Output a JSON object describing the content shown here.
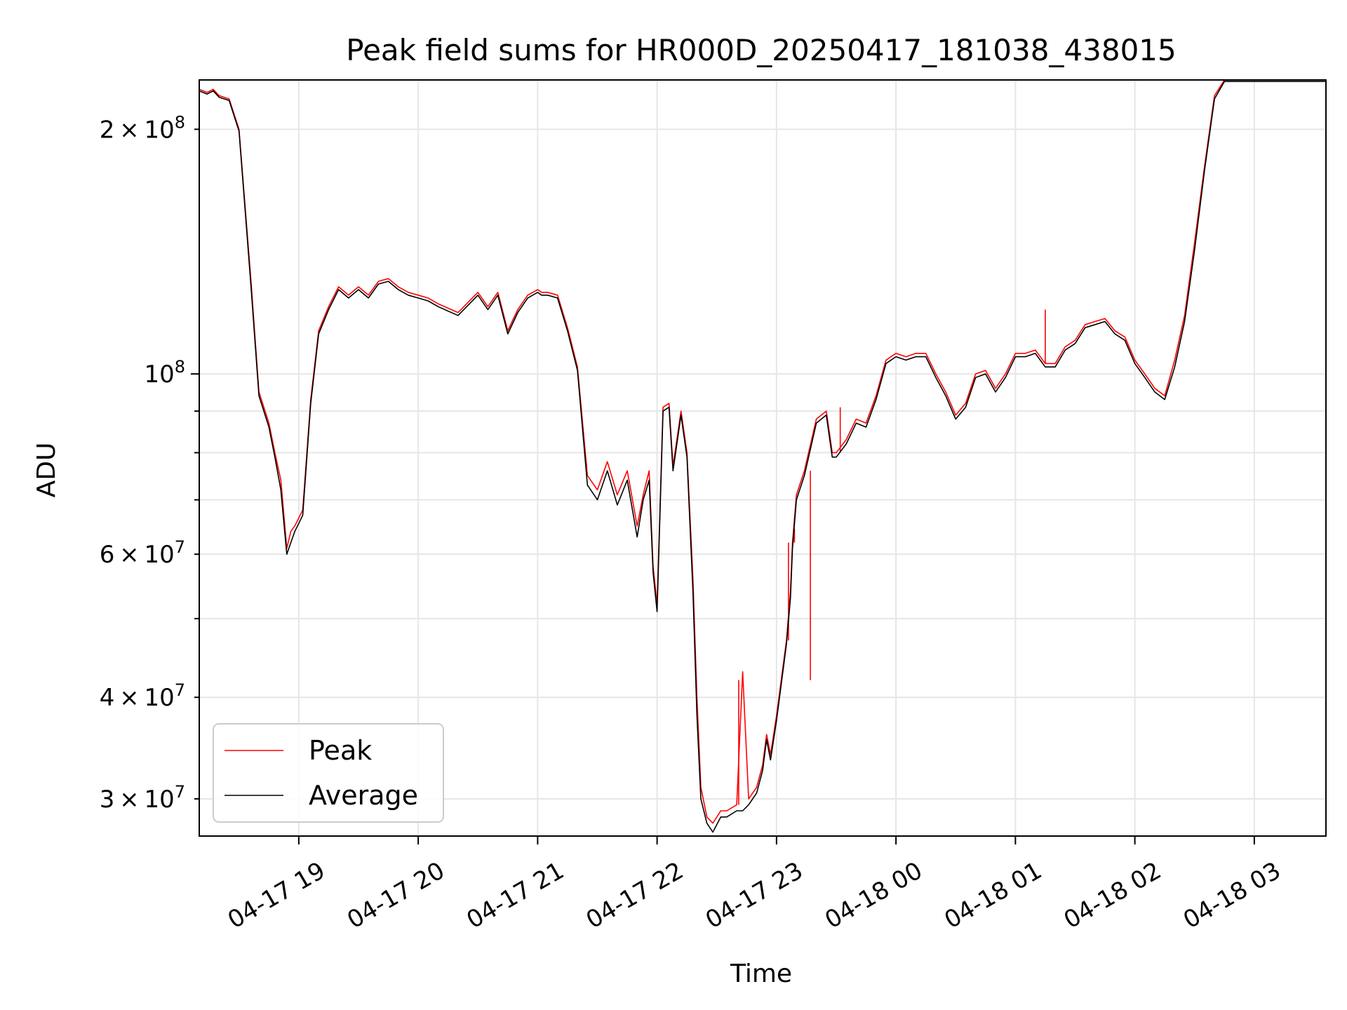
{
  "chart_data": {
    "type": "line",
    "title": "Peak field sums for HR000D_20250417_181038_438015",
    "xlabel": "Time",
    "ylabel": "ADU",
    "yscale": "log",
    "ylim": [
      27000000,
      230000000
    ],
    "xlim": [
      "04-17 18:10",
      "04-18 03:36"
    ],
    "grid": true,
    "legend_position": "lower-left",
    "x_ticks": [
      "04-17 19",
      "04-17 20",
      "04-17 21",
      "04-17 22",
      "04-17 23",
      "04-18 00",
      "04-18 01",
      "04-18 02",
      "04-18 03"
    ],
    "y_ticks_major": [
      {
        "value": 100000000,
        "label": "10^8",
        "base": "10",
        "exp": "8"
      }
    ],
    "y_ticks_minor": [
      {
        "value": 30000000,
        "label": "3×10^7",
        "mant": "3",
        "base": "10",
        "exp": "7"
      },
      {
        "value": 40000000,
        "label": "4×10^7",
        "mant": "4",
        "base": "10",
        "exp": "7"
      },
      {
        "value": 60000000,
        "label": "6×10^7",
        "mant": "6",
        "base": "10",
        "exp": "7"
      },
      {
        "value": 200000000,
        "label": "2×10^8",
        "mant": "2",
        "base": "10",
        "exp": "8"
      }
    ],
    "y_ticks_unlabeled": [
      50000000,
      70000000,
      80000000,
      90000000
    ],
    "series": [
      {
        "name": "Peak",
        "color": "#ff0000",
        "x": [
          "04-17 18:10",
          "04-17 18:14",
          "04-17 18:17",
          "04-17 18:20",
          "04-17 18:25",
          "04-17 18:30",
          "04-17 18:36",
          "04-17 18:40",
          "04-17 18:45",
          "04-17 18:48",
          "04-17 18:51",
          "04-17 18:54",
          "04-17 18:56",
          "04-17 18:58",
          "04-17 19:02",
          "04-17 19:06",
          "04-17 19:10",
          "04-17 19:15",
          "04-17 19:20",
          "04-17 19:25",
          "04-17 19:30",
          "04-17 19:35",
          "04-17 19:40",
          "04-17 19:45",
          "04-17 19:50",
          "04-17 19:55",
          "04-17 20:00",
          "04-17 20:05",
          "04-17 20:10",
          "04-17 20:20",
          "04-17 20:30",
          "04-17 20:35",
          "04-17 20:40",
          "04-17 20:45",
          "04-17 20:50",
          "04-17 20:55",
          "04-17 21:00",
          "04-17 21:02",
          "04-17 21:05",
          "04-17 21:10",
          "04-17 21:15",
          "04-17 21:20",
          "04-17 21:25",
          "04-17 21:30",
          "04-17 21:35",
          "04-17 21:40",
          "04-17 21:45",
          "04-17 21:50",
          "04-17 21:53",
          "04-17 21:56",
          "04-17 21:58",
          "04-17 22:00",
          "04-17 22:03",
          "04-17 22:06",
          "04-17 22:08",
          "04-17 22:12",
          "04-17 22:15",
          "04-17 22:18",
          "04-17 22:20",
          "04-17 22:22",
          "04-17 22:25",
          "04-17 22:28",
          "04-17 22:32",
          "04-17 22:35",
          "04-17 22:40",
          "04-17 22:43",
          "04-17 22:46",
          "04-17 22:50",
          "04-17 22:53",
          "04-17 22:55",
          "04-17 22:57",
          "04-17 23:00",
          "04-17 23:05",
          "04-17 23:07",
          "04-17 23:08",
          "04-17 23:10",
          "04-17 23:14",
          "04-17 23:20",
          "04-17 23:25",
          "04-17 23:28",
          "04-17 23:30",
          "04-17 23:35",
          "04-17 23:40",
          "04-17 23:45",
          "04-17 23:50",
          "04-17 23:55",
          "04-18 00:00",
          "04-18 00:05",
          "04-18 00:10",
          "04-18 00:15",
          "04-18 00:20",
          "04-18 00:25",
          "04-18 00:30",
          "04-18 00:35",
          "04-18 00:40",
          "04-18 00:45",
          "04-18 00:50",
          "04-18 00:55",
          "04-18 01:00",
          "04-18 01:05",
          "04-18 01:10",
          "04-18 01:15",
          "04-18 01:20",
          "04-18 01:25",
          "04-18 01:30",
          "04-18 01:35",
          "04-18 01:40",
          "04-18 01:45",
          "04-18 01:50",
          "04-18 01:55",
          "04-18 02:00",
          "04-18 02:05",
          "04-18 02:10",
          "04-18 02:15",
          "04-18 02:20",
          "04-18 02:25",
          "04-18 02:30",
          "04-18 02:35",
          "04-18 02:40",
          "04-18 02:45",
          "04-18 02:50",
          "04-18 02:55",
          "04-18 03:00",
          "04-18 03:05",
          "04-18 03:10",
          "04-18 03:15",
          "04-18 03:20",
          "04-18 03:25",
          "04-18 03:30",
          "04-18 03:36"
        ],
        "values": [
          224000000,
          222000000,
          224000000,
          220000000,
          218000000,
          200000000,
          130000000,
          95000000,
          87000000,
          80000000,
          74000000,
          61000000,
          64000000,
          65000000,
          68000000,
          93000000,
          113000000,
          121000000,
          128000000,
          125000000,
          128000000,
          125000000,
          130000000,
          131000000,
          128000000,
          126000000,
          125000000,
          124000000,
          122000000,
          119000000,
          126000000,
          121000000,
          126000000,
          113000000,
          120000000,
          125000000,
          127000000,
          126000000,
          126000000,
          125000000,
          114000000,
          102000000,
          75000000,
          72000000,
          78000000,
          71000000,
          76000000,
          65000000,
          71000000,
          76000000,
          58000000,
          52000000,
          91000000,
          92000000,
          77000000,
          90000000,
          80000000,
          56000000,
          40000000,
          31000000,
          28500000,
          28000000,
          29000000,
          29000000,
          29500000,
          43000000,
          30000000,
          31000000,
          33000000,
          36000000,
          34000000,
          38000000,
          47000000,
          54000000,
          62000000,
          71000000,
          76000000,
          88000000,
          90000000,
          80000000,
          80000000,
          83000000,
          88000000,
          87000000,
          94000000,
          104000000,
          106000000,
          105000000,
          106000000,
          106000000,
          100000000,
          95000000,
          89000000,
          92000000,
          100000000,
          101000000,
          96000000,
          100000000,
          106000000,
          106000000,
          107000000,
          103000000,
          103000000,
          108000000,
          110000000,
          115000000,
          116000000,
          117000000,
          113000000,
          111000000,
          104000000,
          100000000,
          96000000,
          94000000,
          104000000,
          118000000,
          145000000,
          180000000,
          220000000,
          230000000,
          230000000,
          230000000,
          230000000,
          230000000,
          230000000,
          230000000,
          230000000,
          230000000,
          230000000,
          230000000
        ],
        "spikes": [
          {
            "x": "04-17 23:06",
            "y": 62000000
          },
          {
            "x": "04-17 23:09",
            "y": 64500000
          },
          {
            "x": "04-17 23:17",
            "y": 42000000
          },
          {
            "x": "04-17 23:32",
            "y": 91000000
          },
          {
            "x": "04-18 01:15",
            "y": 120000000
          },
          {
            "x": "04-17 22:41",
            "y": 42000000
          }
        ]
      },
      {
        "name": "Average",
        "color": "#000000",
        "x": [
          "04-17 18:10",
          "04-17 18:14",
          "04-17 18:17",
          "04-17 18:20",
          "04-17 18:25",
          "04-17 18:30",
          "04-17 18:36",
          "04-17 18:40",
          "04-17 18:45",
          "04-17 18:48",
          "04-17 18:51",
          "04-17 18:54",
          "04-17 18:56",
          "04-17 18:58",
          "04-17 19:02",
          "04-17 19:06",
          "04-17 19:10",
          "04-17 19:15",
          "04-17 19:20",
          "04-17 19:25",
          "04-17 19:30",
          "04-17 19:35",
          "04-17 19:40",
          "04-17 19:45",
          "04-17 19:50",
          "04-17 19:55",
          "04-17 20:00",
          "04-17 20:05",
          "04-17 20:10",
          "04-17 20:20",
          "04-17 20:30",
          "04-17 20:35",
          "04-17 20:40",
          "04-17 20:45",
          "04-17 20:50",
          "04-17 20:55",
          "04-17 21:00",
          "04-17 21:02",
          "04-17 21:05",
          "04-17 21:10",
          "04-17 21:15",
          "04-17 21:20",
          "04-17 21:25",
          "04-17 21:30",
          "04-17 21:35",
          "04-17 21:40",
          "04-17 21:45",
          "04-17 21:50",
          "04-17 21:53",
          "04-17 21:56",
          "04-17 21:58",
          "04-17 22:00",
          "04-17 22:03",
          "04-17 22:06",
          "04-17 22:08",
          "04-17 22:12",
          "04-17 22:15",
          "04-17 22:18",
          "04-17 22:20",
          "04-17 22:22",
          "04-17 22:25",
          "04-17 22:28",
          "04-17 22:32",
          "04-17 22:35",
          "04-17 22:40",
          "04-17 22:43",
          "04-17 22:46",
          "04-17 22:50",
          "04-17 22:53",
          "04-17 22:55",
          "04-17 22:57",
          "04-17 23:00",
          "04-17 23:05",
          "04-17 23:07",
          "04-17 23:08",
          "04-17 23:10",
          "04-17 23:14",
          "04-17 23:20",
          "04-17 23:25",
          "04-17 23:28",
          "04-17 23:30",
          "04-17 23:35",
          "04-17 23:40",
          "04-17 23:45",
          "04-17 23:50",
          "04-17 23:55",
          "04-18 00:00",
          "04-18 00:05",
          "04-18 00:10",
          "04-18 00:15",
          "04-18 00:20",
          "04-18 00:25",
          "04-18 00:30",
          "04-18 00:35",
          "04-18 00:40",
          "04-18 00:45",
          "04-18 00:50",
          "04-18 00:55",
          "04-18 01:00",
          "04-18 01:05",
          "04-18 01:10",
          "04-18 01:15",
          "04-18 01:20",
          "04-18 01:25",
          "04-18 01:30",
          "04-18 01:35",
          "04-18 01:40",
          "04-18 01:45",
          "04-18 01:50",
          "04-18 01:55",
          "04-18 02:00",
          "04-18 02:05",
          "04-18 02:10",
          "04-18 02:15",
          "04-18 02:20",
          "04-18 02:25",
          "04-18 02:30",
          "04-18 02:35",
          "04-18 02:40",
          "04-18 02:45",
          "04-18 02:50",
          "04-18 02:55",
          "04-18 03:00",
          "04-18 03:05",
          "04-18 03:10",
          "04-18 03:15",
          "04-18 03:20",
          "04-18 03:25",
          "04-18 03:30",
          "04-18 03:36"
        ],
        "values": [
          223000000,
          221000000,
          223000000,
          219000000,
          217000000,
          199000000,
          128000000,
          94000000,
          86000000,
          79000000,
          72000000,
          60000000,
          62000000,
          64000000,
          67000000,
          92000000,
          112000000,
          120000000,
          127000000,
          124000000,
          127000000,
          124000000,
          129000000,
          130000000,
          127000000,
          125000000,
          124000000,
          123000000,
          121000000,
          118000000,
          125000000,
          120000000,
          125000000,
          112000000,
          119000000,
          124000000,
          126000000,
          125000000,
          125000000,
          124000000,
          113000000,
          101000000,
          73000000,
          70000000,
          76000000,
          69000000,
          74000000,
          63000000,
          70000000,
          74000000,
          57000000,
          51000000,
          90000000,
          91000000,
          76000000,
          89000000,
          79000000,
          54000000,
          38000000,
          30000000,
          28000000,
          27300000,
          28500000,
          28500000,
          29000000,
          29000000,
          29500000,
          30500000,
          32500000,
          35500000,
          33500000,
          37500000,
          46500000,
          53000000,
          61000000,
          70000000,
          75000000,
          87000000,
          89000000,
          79000000,
          79000000,
          82000000,
          87000000,
          86000000,
          93000000,
          103000000,
          105000000,
          104000000,
          105000000,
          105000000,
          99000000,
          94000000,
          88000000,
          91000000,
          99000000,
          100000000,
          95000000,
          99000000,
          105000000,
          105000000,
          106000000,
          102000000,
          102000000,
          107000000,
          109000000,
          114000000,
          115000000,
          116000000,
          112000000,
          110000000,
          103000000,
          99000000,
          95000000,
          93000000,
          102000000,
          116000000,
          142000000,
          178000000,
          218000000,
          229000000,
          229000000,
          229000000,
          229000000,
          229000000,
          229000000,
          229000000,
          229000000,
          229000000,
          229000000,
          229000000
        ]
      }
    ]
  }
}
